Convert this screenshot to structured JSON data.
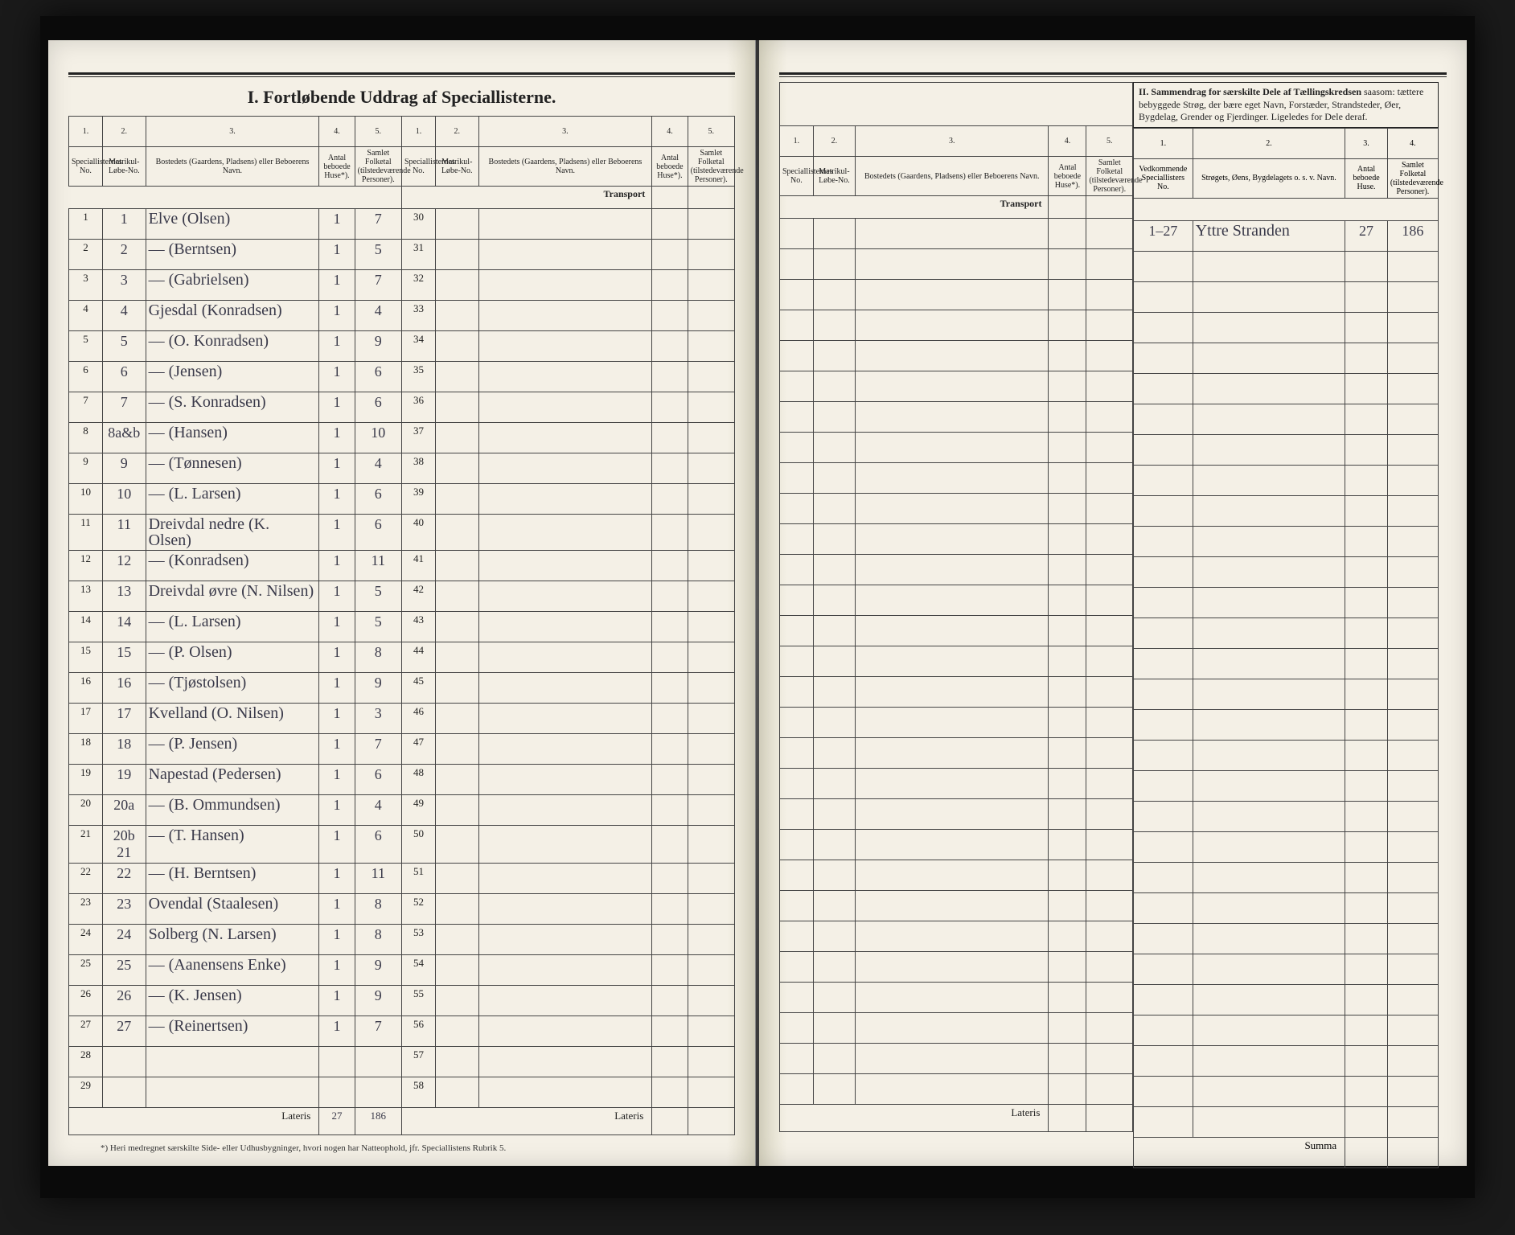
{
  "title_main": "I.  Fortløbende Uddrag af Speciallisterne.",
  "title_section2": "II. Sammendrag for særskilte Dele af Tællingskredsen",
  "title_section2_sub": "saasom: tættere bebyggede Strøg, der bære eget Navn, Forstæder, Strandsteder, Øer, Bygdelag, Grender og Fjerdinger. Ligeledes for Dele deraf.",
  "col_hdr": {
    "c1n": "1.",
    "c1": "Speciallisternes No.",
    "c2n": "2.",
    "c2": "Matrikul-Løbe-No.",
    "c3n": "3.",
    "c3": "Bostedets (Gaardens, Pladsens) eller Beboerens Navn.",
    "c4n": "4.",
    "c4": "Antal beboede Huse*).",
    "c5n": "5.",
    "c5": "Samlet Folketal (tilstedeværende Personer)."
  },
  "sum_hdr": {
    "c1n": "1.",
    "c1": "Vedkommende Speciallisters No.",
    "c2n": "2.",
    "c2": "Strøgets, Øens, Bygdelagets o. s. v. Navn.",
    "c3n": "3.",
    "c3": "Antal beboede Huse.",
    "c4n": "4.",
    "c4": "Samlet Folketal (tilstedeværende Personer)."
  },
  "transport_label": "Transport",
  "lateris_label": "Lateris",
  "summa_label": "Summa",
  "footnote": "*) Heri medregnet særskilte Side- eller Udhusbygninger, hvori nogen har Natteophold, jfr. Speciallistens Rubrik 5.",
  "rows_left_a": [
    {
      "sn": "1",
      "mn": "1",
      "name": "Elve (Olsen)",
      "h": "1",
      "p": "7"
    },
    {
      "sn": "2",
      "mn": "2",
      "name": "— (Berntsen)",
      "h": "1",
      "p": "5"
    },
    {
      "sn": "3",
      "mn": "3",
      "name": "— (Gabrielsen)",
      "h": "1",
      "p": "7"
    },
    {
      "sn": "4",
      "mn": "4",
      "name": "Gjesdal (Konradsen)",
      "h": "1",
      "p": "4"
    },
    {
      "sn": "5",
      "mn": "5",
      "name": "— (O. Konradsen)",
      "h": "1",
      "p": "9"
    },
    {
      "sn": "6",
      "mn": "6",
      "name": "— (Jensen)",
      "h": "1",
      "p": "6"
    },
    {
      "sn": "7",
      "mn": "7",
      "name": "— (S. Konradsen)",
      "h": "1",
      "p": "6"
    },
    {
      "sn": "8",
      "mn": "8a&b",
      "name": "— (Hansen)",
      "h": "1",
      "p": "10"
    },
    {
      "sn": "9",
      "mn": "9",
      "name": "— (Tønnesen)",
      "h": "1",
      "p": "4"
    },
    {
      "sn": "10",
      "mn": "10",
      "name": "— (L. Larsen)",
      "h": "1",
      "p": "6"
    },
    {
      "sn": "11",
      "mn": "11",
      "name": "Dreivdal nedre (K. Olsen)",
      "h": "1",
      "p": "6"
    },
    {
      "sn": "12",
      "mn": "12",
      "name": "— (Konradsen)",
      "h": "1",
      "p": "11"
    },
    {
      "sn": "13",
      "mn": "13",
      "name": "Dreivdal øvre (N. Nilsen)",
      "h": "1",
      "p": "5"
    },
    {
      "sn": "14",
      "mn": "14",
      "name": "— (L. Larsen)",
      "h": "1",
      "p": "5"
    },
    {
      "sn": "15",
      "mn": "15",
      "name": "— (P. Olsen)",
      "h": "1",
      "p": "8"
    },
    {
      "sn": "16",
      "mn": "16",
      "name": "— (Tjøstolsen)",
      "h": "1",
      "p": "9"
    },
    {
      "sn": "17",
      "mn": "17",
      "name": "Kvelland (O. Nilsen)",
      "h": "1",
      "p": "3"
    },
    {
      "sn": "18",
      "mn": "18",
      "name": "— (P. Jensen)",
      "h": "1",
      "p": "7"
    },
    {
      "sn": "19",
      "mn": "19",
      "name": "Napestad (Pedersen)",
      "h": "1",
      "p": "6"
    },
    {
      "sn": "20",
      "mn": "20a",
      "name": "— (B. Ommundsen)",
      "h": "1",
      "p": "4"
    },
    {
      "sn": "21",
      "mn": "20b 21",
      "name": "— (T. Hansen)",
      "h": "1",
      "p": "6"
    },
    {
      "sn": "22",
      "mn": "22",
      "name": "— (H. Berntsen)",
      "h": "1",
      "p": "11"
    },
    {
      "sn": "23",
      "mn": "23",
      "name": "Ovendal (Staalesen)",
      "h": "1",
      "p": "8"
    },
    {
      "sn": "24",
      "mn": "24",
      "name": "Solberg (N. Larsen)",
      "h": "1",
      "p": "8"
    },
    {
      "sn": "25",
      "mn": "25",
      "name": "— (Aanensens Enke)",
      "h": "1",
      "p": "9"
    },
    {
      "sn": "26",
      "mn": "26",
      "name": "— (K. Jensen)",
      "h": "1",
      "p": "9"
    },
    {
      "sn": "27",
      "mn": "27",
      "name": "— (Reinertsen)",
      "h": "1",
      "p": "7"
    },
    {
      "sn": "28",
      "mn": "",
      "name": "",
      "h": "",
      "p": ""
    },
    {
      "sn": "29",
      "mn": "",
      "name": "",
      "h": "",
      "p": ""
    }
  ],
  "left_a_printstart": 1,
  "rows_left_b_printstart": 30,
  "rows_left_b_count": 29,
  "lateris_h": "27",
  "lateris_p": "186",
  "rows_right_count": 29,
  "summary_row": {
    "spec": "1–27",
    "name": "Yttre Stranden",
    "h": "27",
    "p": "186"
  },
  "summary_empty_rows": 29
}
